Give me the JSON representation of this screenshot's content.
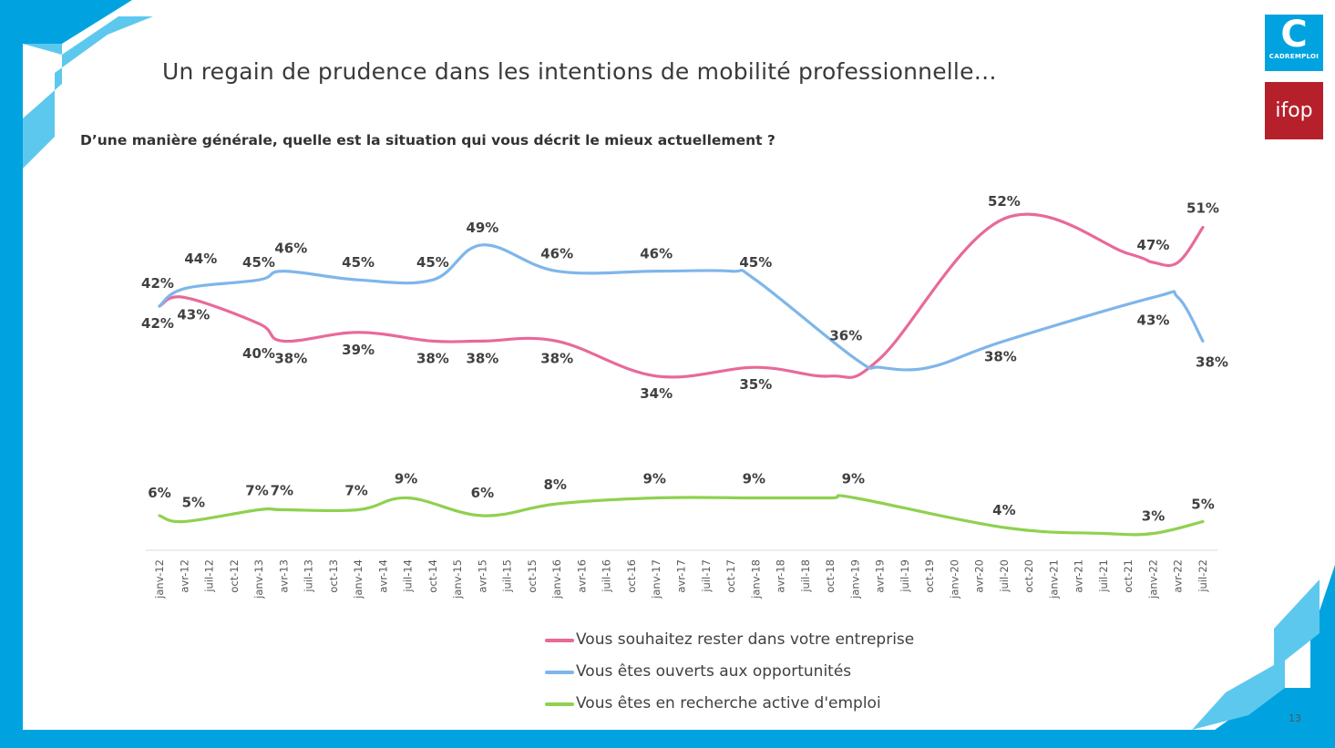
{
  "slide": {
    "title": "Un regain de prudence dans les intentions de mobilité professionnelle…",
    "question": "D’une manière générale, quelle est la situation qui vous décrit le mieux actuellement ?",
    "page_number": "13"
  },
  "logos": {
    "cadremploi_letter": "C",
    "cadremploi_name": "CADREMPLOI",
    "ifop_name": "ifop"
  },
  "colors": {
    "frame_blue": "#00a3e0",
    "frame_light_blue": "#5dc8ee",
    "stay": "#e8699a",
    "open": "#7eb6ea",
    "search": "#8fd14f",
    "label_text": "#404040"
  },
  "chart_data": {
    "type": "line",
    "x_labels": [
      "janv-12",
      "avr-12",
      "juil-12",
      "oct-12",
      "janv-13",
      "avr-13",
      "juil-13",
      "oct-13",
      "janv-14",
      "avr-14",
      "juil-14",
      "oct-14",
      "janv-15",
      "avr-15",
      "juil-15",
      "oct-15",
      "janv-16",
      "avr-16",
      "juil-16",
      "oct-16",
      "janv-17",
      "avr-17",
      "juil-17",
      "oct-17",
      "janv-18",
      "avr-18",
      "juil-18",
      "oct-18",
      "janv-19",
      "avr-19",
      "juil-19",
      "oct-19",
      "janv-20",
      "avr-20",
      "juil-20",
      "oct-20",
      "janv-21",
      "avr-21",
      "juil-21",
      "oct-21",
      "janv-22",
      "avr-22",
      "juil-22"
    ],
    "unit": "%",
    "series": [
      {
        "name": "Vous souhaitez rester dans votre entreprise",
        "color": "#e8699a",
        "points": [
          {
            "x": "janv-12",
            "y": 42,
            "label": "42%"
          },
          {
            "x": "avr-12",
            "y": 43,
            "label": "43%"
          },
          {
            "x": "janv-13",
            "y": 40,
            "label": "40%"
          },
          {
            "x": "avr-13",
            "y": 38,
            "label": "38%"
          },
          {
            "x": "janv-14",
            "y": 39,
            "label": "39%"
          },
          {
            "x": "oct-14",
            "y": 38,
            "label": "38%"
          },
          {
            "x": "avr-15",
            "y": 38,
            "label": "38%"
          },
          {
            "x": "janv-16",
            "y": 38,
            "label": "38%"
          },
          {
            "x": "janv-17",
            "y": 34,
            "label": "34%"
          },
          {
            "x": "janv-18",
            "y": 35,
            "label": "35%"
          },
          {
            "x": "oct-18",
            "y": 34
          },
          {
            "x": "avr-19",
            "y": 36
          },
          {
            "x": "juil-20",
            "y": 52,
            "label": "52%"
          },
          {
            "x": "oct-21",
            "y": 48
          },
          {
            "x": "janv-22",
            "y": 47,
            "label": "47%"
          },
          {
            "x": "avr-22",
            "y": 47
          },
          {
            "x": "juil-22",
            "y": 51,
            "label": "51%"
          }
        ]
      },
      {
        "name": "Vous êtes ouverts aux opportunités",
        "color": "#7eb6ea",
        "points": [
          {
            "x": "janv-12",
            "y": 42,
            "label": "42%"
          },
          {
            "x": "avr-12",
            "y": 44,
            "label": "44%"
          },
          {
            "x": "janv-13",
            "y": 45,
            "label": "45%"
          },
          {
            "x": "avr-13",
            "y": 46,
            "label": "46%"
          },
          {
            "x": "janv-14",
            "y": 45,
            "label": "45%"
          },
          {
            "x": "oct-14",
            "y": 45,
            "label": "45%"
          },
          {
            "x": "avr-15",
            "y": 49,
            "label": "49%"
          },
          {
            "x": "janv-16",
            "y": 46,
            "label": "46%"
          },
          {
            "x": "janv-17",
            "y": 46,
            "label": "46%"
          },
          {
            "x": "oct-17",
            "y": 46
          },
          {
            "x": "janv-18",
            "y": 45,
            "label": "45%"
          },
          {
            "x": "janv-19",
            "y": 36,
            "label": "36%"
          },
          {
            "x": "avr-19",
            "y": 35
          },
          {
            "x": "oct-19",
            "y": 35
          },
          {
            "x": "juil-20",
            "y": 38,
            "label": "38%"
          },
          {
            "x": "janv-22",
            "y": 43,
            "label": "43%"
          },
          {
            "x": "avr-22",
            "y": 43
          },
          {
            "x": "juil-22",
            "y": 38,
            "label": "38%"
          }
        ]
      },
      {
        "name": "Vous êtes en recherche active d'emploi",
        "color": "#8fd14f",
        "points": [
          {
            "x": "janv-12",
            "y": 6,
            "label": "6%"
          },
          {
            "x": "avr-12",
            "y": 5,
            "label": "5%"
          },
          {
            "x": "janv-13",
            "y": 7,
            "label": "7%"
          },
          {
            "x": "avr-13",
            "y": 7,
            "label": "7%"
          },
          {
            "x": "janv-14",
            "y": 7,
            "label": "7%"
          },
          {
            "x": "juil-14",
            "y": 9,
            "label": "9%"
          },
          {
            "x": "avr-15",
            "y": 6,
            "label": "6%"
          },
          {
            "x": "janv-16",
            "y": 8,
            "label": "8%"
          },
          {
            "x": "janv-17",
            "y": 9,
            "label": "9%"
          },
          {
            "x": "janv-18",
            "y": 9,
            "label": "9%"
          },
          {
            "x": "oct-18",
            "y": 9
          },
          {
            "x": "janv-19",
            "y": 9,
            "label": "9%"
          },
          {
            "x": "juil-20",
            "y": 4,
            "label": "4%"
          },
          {
            "x": "juil-21",
            "y": 3
          },
          {
            "x": "janv-22",
            "y": 3,
            "label": "3%"
          },
          {
            "x": "juil-22",
            "y": 5,
            "label": "5%"
          }
        ]
      }
    ],
    "legend_position": "bottom-center",
    "grid": false
  }
}
